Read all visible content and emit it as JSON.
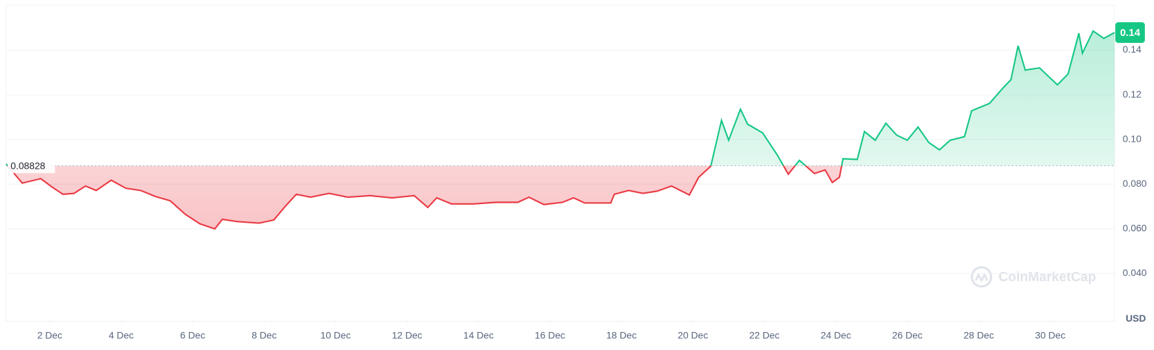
{
  "chart_data": {
    "type": "line",
    "x": [
      0.78,
      1.23,
      1.75,
      2.06,
      2.37,
      2.68,
      3.0,
      3.3,
      3.72,
      4.13,
      4.55,
      4.96,
      5.37,
      5.79,
      6.2,
      6.62,
      6.83,
      7.24,
      7.86,
      8.27,
      8.58,
      8.9,
      9.3,
      9.82,
      10.34,
      10.96,
      11.58,
      12.2,
      12.58,
      12.83,
      13.24,
      13.86,
      14.48,
      15.1,
      15.41,
      15.83,
      16.35,
      16.66,
      16.97,
      17.7,
      17.8,
      18.2,
      18.6,
      19.0,
      19.4,
      19.9,
      20.16,
      20.5,
      20.8,
      21.0,
      21.33,
      21.53,
      21.95,
      22.36,
      22.67,
      22.98,
      23.4,
      23.7,
      23.9,
      24.1,
      24.2,
      24.6,
      24.8,
      25.1,
      25.4,
      25.7,
      26.0,
      26.3,
      26.6,
      26.9,
      27.2,
      27.6,
      27.8,
      28.3,
      28.7,
      28.9,
      29.1,
      29.3,
      29.7,
      30.2,
      30.5,
      30.8,
      30.9,
      31.2,
      31.5,
      31.8
    ],
    "values": [
      0.0891,
      0.0805,
      0.0825,
      0.0788,
      0.0755,
      0.0759,
      0.0792,
      0.0772,
      0.0818,
      0.0782,
      0.0772,
      0.0745,
      0.0726,
      0.0666,
      0.0623,
      0.06,
      0.0643,
      0.0633,
      0.0626,
      0.064,
      0.0699,
      0.0755,
      0.0742,
      0.0759,
      0.0742,
      0.0749,
      0.0739,
      0.0749,
      0.0696,
      0.0739,
      0.0712,
      0.0712,
      0.0719,
      0.0719,
      0.0742,
      0.0709,
      0.0719,
      0.0739,
      0.0716,
      0.0716,
      0.0755,
      0.0772,
      0.0759,
      0.0769,
      0.0792,
      0.0752,
      0.0831,
      0.0881,
      0.1086,
      0.0997,
      0.1136,
      0.1069,
      0.103,
      0.0931,
      0.0845,
      0.0907,
      0.0848,
      0.0864,
      0.0808,
      0.0831,
      0.0914,
      0.0911,
      0.1036,
      0.0997,
      0.1073,
      0.102,
      0.0997,
      0.1056,
      0.0987,
      0.0954,
      0.0997,
      0.1013,
      0.1129,
      0.1162,
      0.1235,
      0.1268,
      0.142,
      0.1311,
      0.1321,
      0.1245,
      0.1294,
      0.1476,
      0.1387,
      0.1486,
      0.1453,
      0.1479
    ],
    "xlim": [
      0.78,
      31.8
    ],
    "xticks": [
      {
        "value": 2,
        "label": "2 Dec"
      },
      {
        "value": 4,
        "label": "4 Dec"
      },
      {
        "value": 6,
        "label": "6 Dec"
      },
      {
        "value": 8,
        "label": "8 Dec"
      },
      {
        "value": 10,
        "label": "10 Dec"
      },
      {
        "value": 12,
        "label": "12 Dec"
      },
      {
        "value": 14,
        "label": "14 Dec"
      },
      {
        "value": 16,
        "label": "16 Dec"
      },
      {
        "value": 18,
        "label": "18 Dec"
      },
      {
        "value": 20,
        "label": "20 Dec"
      },
      {
        "value": 22,
        "label": "22 Dec"
      },
      {
        "value": 24,
        "label": "24 Dec"
      },
      {
        "value": 26,
        "label": "26 Dec"
      },
      {
        "value": 28,
        "label": "28 Dec"
      },
      {
        "value": 30,
        "label": "30 Dec"
      }
    ],
    "ylim": [
      0.02,
      0.16
    ],
    "yticks": [
      {
        "value": 0.04,
        "label": "0.040"
      },
      {
        "value": 0.06,
        "label": "0.060"
      },
      {
        "value": 0.08,
        "label": "0.080"
      },
      {
        "value": 0.1,
        "label": "0.10"
      },
      0.12,
      0.14
    ],
    "grid": true,
    "baseline": 0.08828,
    "price_tag": 0.14,
    "up_color": "#16c784",
    "down_color": "#ea3943",
    "unit": "USD",
    "watermark": "CoinMarketCap"
  }
}
